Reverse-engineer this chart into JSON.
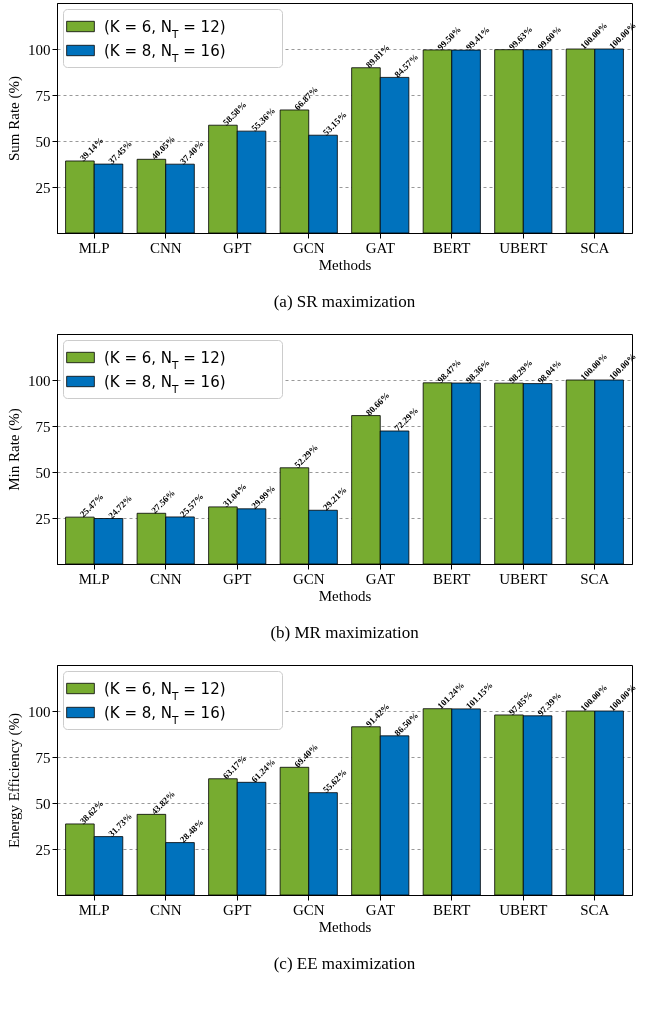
{
  "chart_data": [
    {
      "type": "bar",
      "categories": [
        "MLP",
        "CNN",
        "GPT",
        "GCN",
        "GAT",
        "BERT",
        "UBERT",
        "SCA"
      ],
      "xlabel": "Methods",
      "ylabel": "Sum Rate (%)",
      "ylim": [
        0,
        125
      ],
      "yticks": [
        25,
        50,
        75,
        100
      ],
      "grid": "y",
      "legend": "top left",
      "annotations": [
        "(a)  SR maximization"
      ],
      "series": [
        {
          "name": "(K = 6, N$_{T}$ = 12)",
          "color": "#77ac30",
          "values": [
            39.14,
            40.05,
            58.58,
            66.87,
            89.81,
            99.5,
            99.63,
            100.0
          ],
          "value_labels": [
            "39.14%",
            "40.05%",
            "58.58%",
            "66.87%",
            "89.81%",
            "99.50%",
            "99.63%",
            "100.00%"
          ]
        },
        {
          "name": "(K = 8, N$_{T}$ = 16)",
          "color": "#0072bd",
          "values": [
            37.45,
            37.4,
            55.36,
            53.15,
            84.57,
            99.41,
            99.6,
            100.0
          ],
          "value_labels": [
            "37.45%",
            "37.40%",
            "55.36%",
            "53.15%",
            "84.57%",
            "99.41%",
            "99.60%",
            "100.00%"
          ]
        }
      ]
    },
    {
      "type": "bar",
      "categories": [
        "MLP",
        "CNN",
        "GPT",
        "GCN",
        "GAT",
        "BERT",
        "UBERT",
        "SCA"
      ],
      "xlabel": "Methods",
      "ylabel": "Min Rate (%)",
      "ylim": [
        0,
        125
      ],
      "yticks": [
        25,
        50,
        75,
        100
      ],
      "grid": "y",
      "legend": "top left",
      "annotations": [
        "(b)  MR maximization"
      ],
      "series": [
        {
          "name": "(K = 6, N$_{T}$ = 12)",
          "color": "#77ac30",
          "values": [
            25.47,
            27.56,
            31.04,
            52.29,
            80.66,
            98.47,
            98.29,
            100.0
          ],
          "value_labels": [
            "25.47%",
            "27.56%",
            "31.04%",
            "52.29%",
            "80.66%",
            "98.47%",
            "98.29%",
            "100.00%"
          ]
        },
        {
          "name": "(K = 8, N$_{T}$ = 16)",
          "color": "#0072bd",
          "values": [
            24.72,
            25.57,
            29.99,
            29.21,
            72.29,
            98.36,
            98.04,
            100.0
          ],
          "value_labels": [
            "24.72%",
            "25.57%",
            "29.99%",
            "29.21%",
            "72.29%",
            "98.36%",
            "98.04%",
            "100.00%"
          ]
        }
      ]
    },
    {
      "type": "bar",
      "categories": [
        "MLP",
        "CNN",
        "GPT",
        "GCN",
        "GAT",
        "BERT",
        "UBERT",
        "SCA"
      ],
      "xlabel": "Methods",
      "ylabel": "Energy Efficiency (%)",
      "ylim": [
        0,
        125
      ],
      "yticks": [
        25,
        50,
        75,
        100
      ],
      "grid": "y",
      "legend": "top left",
      "annotations": [
        "(c)  EE maximization"
      ],
      "series": [
        {
          "name": "(K = 6, N$_{T}$ = 12)",
          "color": "#77ac30",
          "values": [
            38.62,
            43.82,
            63.17,
            69.4,
            91.42,
            101.24,
            97.85,
            100.0
          ],
          "value_labels": [
            "38.62%",
            "43.82%",
            "63.17%",
            "69.40%",
            "91.42%",
            "101.24%",
            "97.85%",
            "100.00%"
          ]
        },
        {
          "name": "(K = 8, N$_{T}$ = 16)",
          "color": "#0072bd",
          "values": [
            31.73,
            28.48,
            61.24,
            55.62,
            86.5,
            101.15,
            97.39,
            100.0
          ],
          "value_labels": [
            "31.73%",
            "28.48%",
            "61.24%",
            "55.62%",
            "86.50%",
            "101.15%",
            "97.39%",
            "100.00%"
          ]
        }
      ]
    }
  ]
}
